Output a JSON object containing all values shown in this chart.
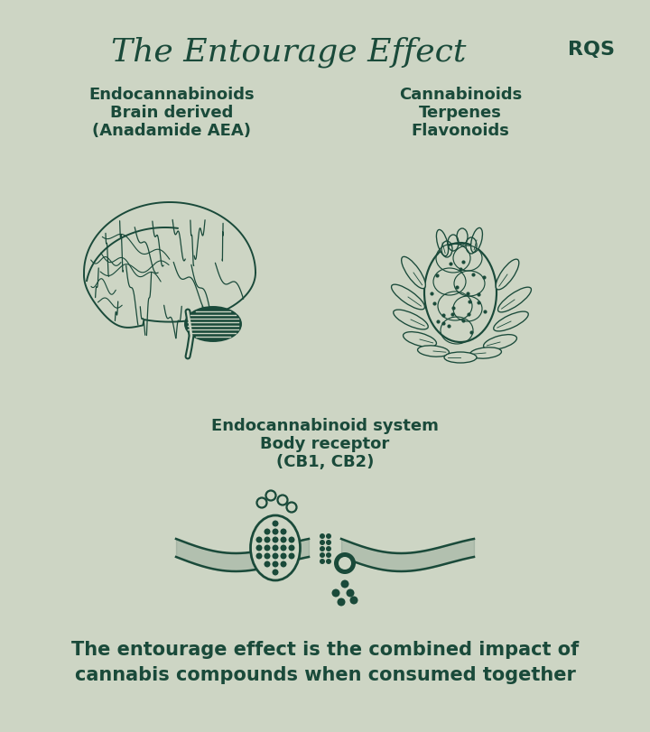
{
  "bg_color": "#cdd5c4",
  "dark_green": "#1a4a3a",
  "title": "The Entourage Effect",
  "rqs_label": "RQS",
  "left_title_lines": [
    "Endocannabinoids",
    "Brain derived",
    "(Anadamide AEA)"
  ],
  "right_title_lines": [
    "Cannabinoids",
    "Terpenes",
    "Flavonoids"
  ],
  "middle_title_lines": [
    "Endocannabinoid system",
    "Body receptor",
    "(CB1, CB2)"
  ],
  "bottom_text_line1": "The entourage effect is the combined impact of",
  "bottom_text_line2": "cannabis compounds when consumed together",
  "title_fontsize": 26,
  "subtitle_fontsize": 13,
  "body_fontsize": 15,
  "rqs_fontsize": 14
}
